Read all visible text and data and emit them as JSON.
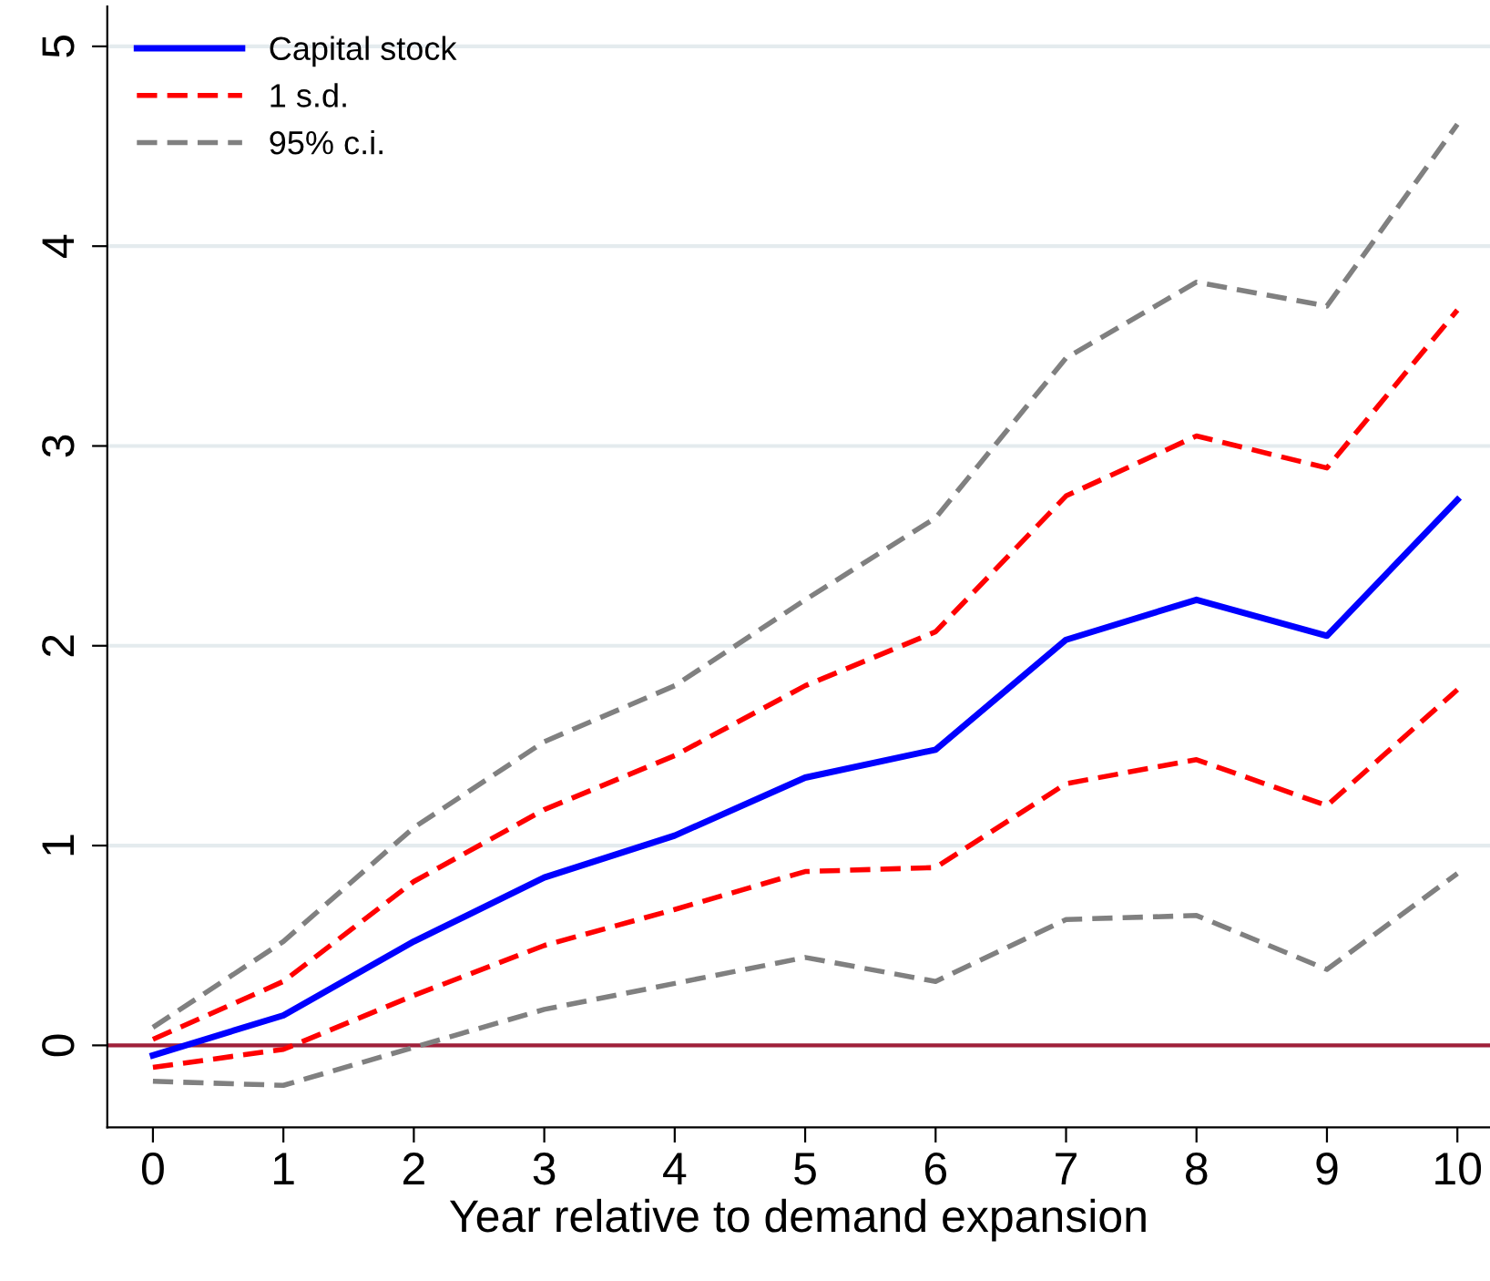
{
  "chart_data": {
    "type": "line",
    "xlabel": "Year relative to demand expansion",
    "x": [
      0,
      1,
      2,
      3,
      4,
      5,
      6,
      7,
      8,
      9,
      10
    ],
    "series": [
      {
        "name": "Capital stock",
        "color": "#0000ff",
        "line_style": "solid",
        "values": [
          -0.05,
          0.15,
          0.52,
          0.84,
          1.05,
          1.34,
          1.48,
          2.03,
          2.23,
          2.05,
          2.73
        ]
      },
      {
        "name": "1 s.d.",
        "color": "#ff0000",
        "line_style": "dashed",
        "values": [
          0.03,
          0.32,
          0.82,
          1.18,
          1.45,
          1.8,
          2.07,
          2.75,
          3.05,
          2.89,
          3.68
        ]
      },
      {
        "color": "#ff0000",
        "line_style": "dashed",
        "values": [
          -0.11,
          -0.02,
          0.25,
          0.5,
          0.68,
          0.87,
          0.89,
          1.31,
          1.43,
          1.2,
          1.78
        ]
      },
      {
        "name": "95% c.i.",
        "color": "#808080",
        "line_style": "dashed",
        "values": [
          0.09,
          0.52,
          1.09,
          1.52,
          1.8,
          2.23,
          2.64,
          3.44,
          3.82,
          3.7,
          4.61
        ]
      },
      {
        "color": "#808080",
        "line_style": "dashed",
        "values": [
          -0.18,
          -0.2,
          -0.01,
          0.18,
          0.31,
          0.44,
          0.32,
          0.63,
          0.65,
          0.38,
          0.86
        ]
      }
    ],
    "xlim": [
      -0.35,
      10.25
    ],
    "xticks": [
      0,
      1,
      2,
      3,
      4,
      5,
      6,
      7,
      8,
      9,
      10
    ],
    "ylim": [
      -0.41,
      5.2
    ],
    "yticks": [
      0,
      1,
      2,
      3,
      4,
      5
    ],
    "ref_lines": [
      {
        "axis": "y",
        "value": 0,
        "color": "#a0203a",
        "line_style": "solid"
      }
    ],
    "grid": "y",
    "legend": "top left"
  }
}
